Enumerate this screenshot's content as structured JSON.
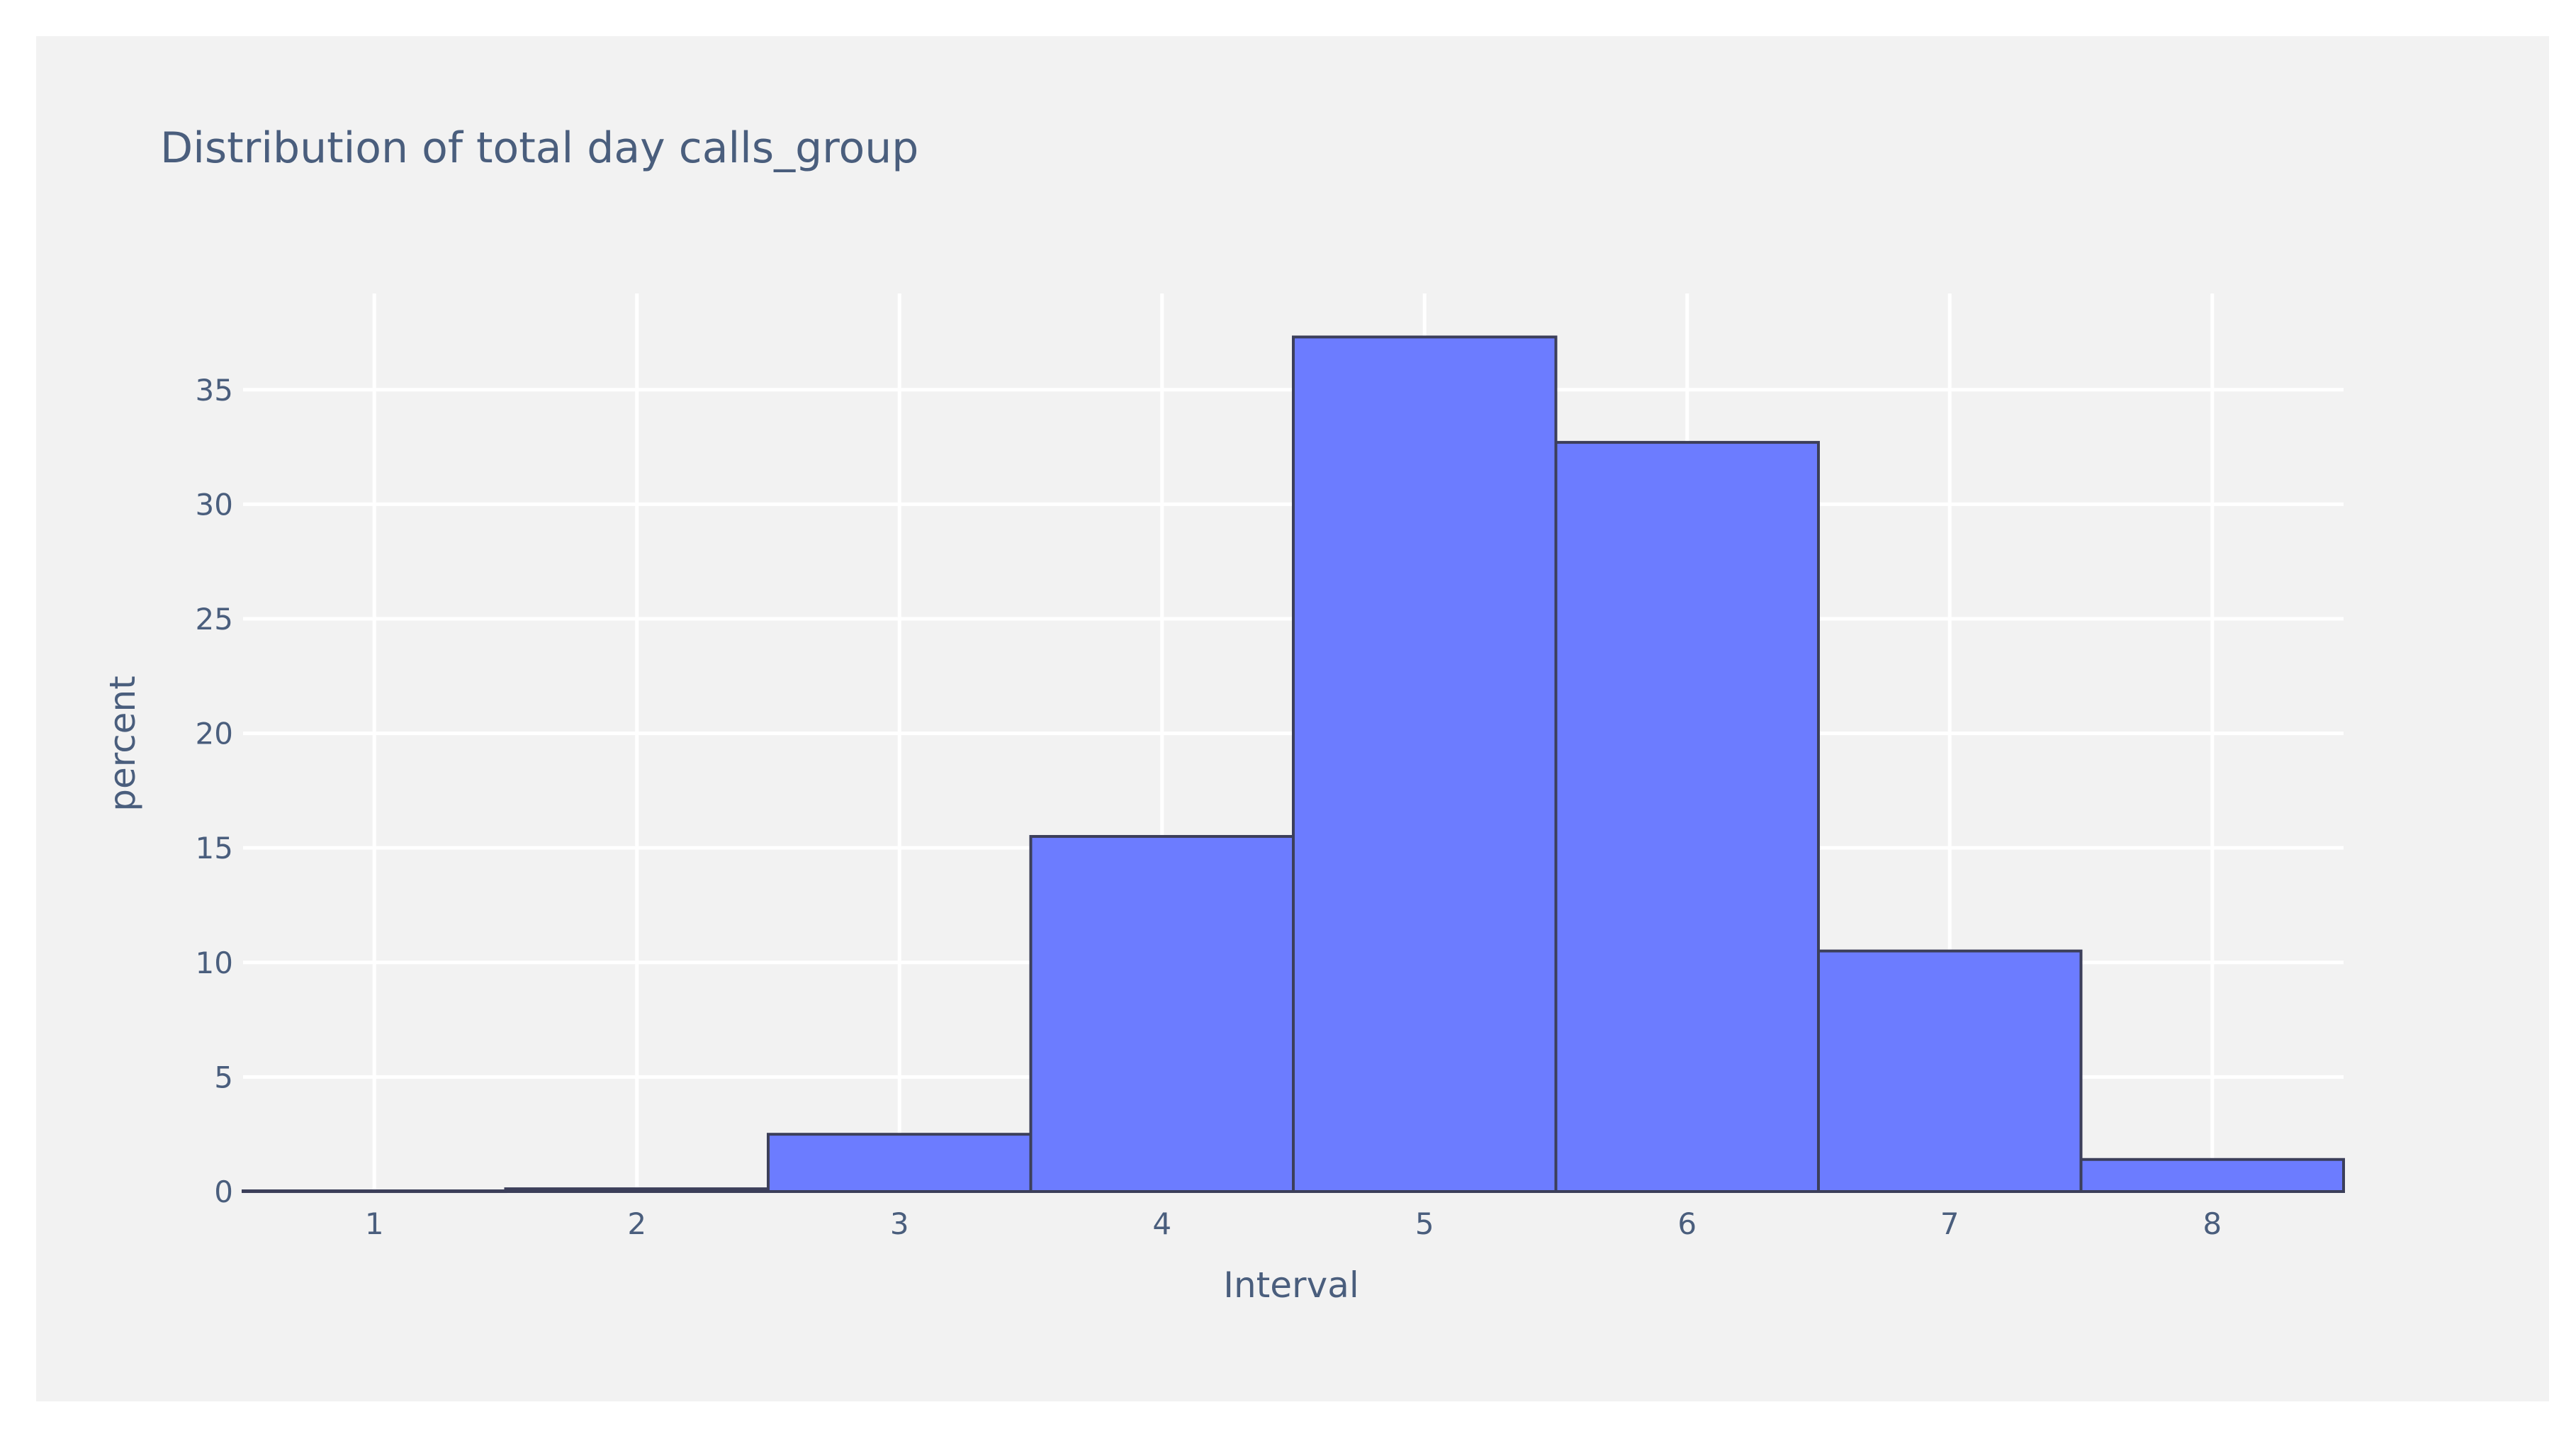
{
  "chart_data": {
    "type": "bar",
    "title": "Distribution of total day calls_group",
    "xlabel": "Interval",
    "ylabel": "percent",
    "categories": [
      1,
      2,
      3,
      4,
      5,
      6,
      7,
      8
    ],
    "values": [
      0.03,
      0.12,
      2.5,
      15.5,
      37.3,
      32.7,
      10.5,
      1.4
    ],
    "x_ticks": [
      "1",
      "2",
      "3",
      "4",
      "5",
      "6",
      "7",
      "8"
    ],
    "y_ticks": [
      "0",
      "5",
      "10",
      "15",
      "20",
      "25",
      "30",
      "35"
    ],
    "y_tick_values": [
      0,
      5,
      10,
      15,
      20,
      25,
      30,
      35
    ],
    "xlim": [
      0.5,
      8.5
    ],
    "ylim": [
      0,
      39.2
    ],
    "grid": true,
    "bar_color": "#6c7cff",
    "bar_outline_color": "#3c3f5a",
    "grid_color": "#ffffff",
    "plot_background": "#f2f2f2"
  }
}
